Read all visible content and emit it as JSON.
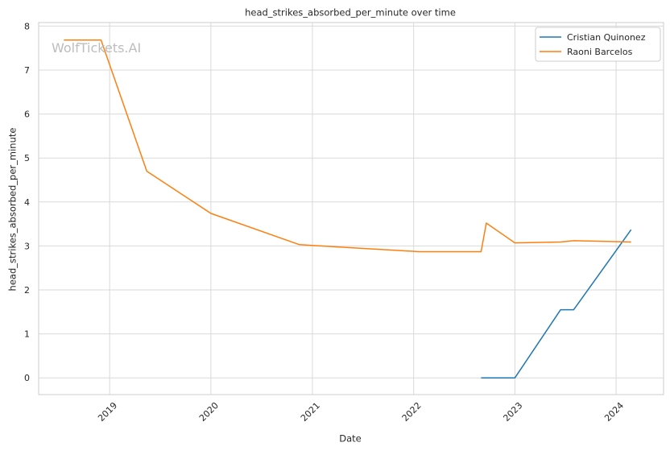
{
  "chart_data": {
    "type": "line",
    "title": "head_strikes_absorbed_per_minute over time",
    "xlabel": "Date",
    "ylabel": "head_strikes_absorbed_per_minute",
    "watermark": "WolfTickets.AI",
    "x_ticks": [
      "2019",
      "2020",
      "2021",
      "2022",
      "2023",
      "2024"
    ],
    "y_ticks": [
      "0",
      "1",
      "2",
      "3",
      "4",
      "5",
      "6",
      "7",
      "8"
    ],
    "ylim": [
      -0.38,
      8.08
    ],
    "xlim": [
      "2018-04-20",
      "2024-06-20"
    ],
    "grid": true,
    "legend_position": "top-right",
    "series": [
      {
        "name": "Cristian Quinonez",
        "color": "#1f77b4",
        "points": [
          {
            "x": "2022-09-01",
            "y": 0.0
          },
          {
            "x": "2023-01-01",
            "y": 0.0
          },
          {
            "x": "2023-06-15",
            "y": 1.55
          },
          {
            "x": "2023-08-01",
            "y": 1.55
          },
          {
            "x": "2024-02-24",
            "y": 3.37
          }
        ]
      },
      {
        "name": "Raoni Barcelos",
        "color": "#ff7f0e",
        "points": [
          {
            "x": "2018-07-20",
            "y": 7.68
          },
          {
            "x": "2018-12-01",
            "y": 7.68
          },
          {
            "x": "2019-05-15",
            "y": 4.7
          },
          {
            "x": "2020-01-01",
            "y": 3.74
          },
          {
            "x": "2020-11-15",
            "y": 3.03
          },
          {
            "x": "2022-01-20",
            "y": 2.87
          },
          {
            "x": "2022-09-01",
            "y": 2.87
          },
          {
            "x": "2022-09-20",
            "y": 3.52
          },
          {
            "x": "2023-01-01",
            "y": 3.07
          },
          {
            "x": "2023-06-15",
            "y": 3.09
          },
          {
            "x": "2023-08-01",
            "y": 3.12
          },
          {
            "x": "2024-02-24",
            "y": 3.09
          }
        ]
      }
    ]
  }
}
